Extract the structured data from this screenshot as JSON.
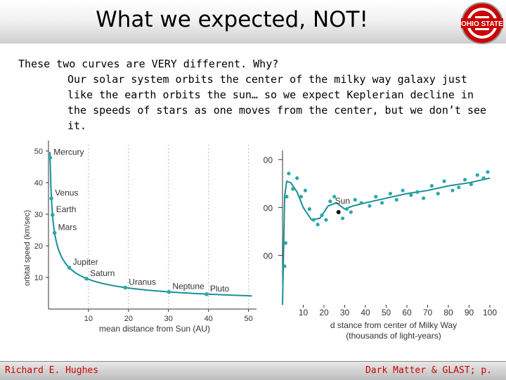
{
  "slide": {
    "title": "What we expected, NOT!",
    "intro": "These two curves are VERY different.  Why?",
    "paragraph": "Our solar system orbits the center of the milky way galaxy just like the earth orbits the sun… so we expect Keplerian decline in the speeds of stars as one moves from the center, but we don’t see it.",
    "footer_left": "Richard E. Hughes",
    "footer_right": "Dark Matter & GLAST; p.",
    "logo_text": "OHIO STATE"
  },
  "colors": {
    "accent": "#cc0000",
    "points": "#2aa8a8",
    "curve": "#1a8f95"
  },
  "chart_data": [
    {
      "type": "scatter",
      "title": "",
      "xlabel": "mean distance from Sun (AU)",
      "ylabel": "orbital speed (km/sec)",
      "xlim": [
        0,
        52
      ],
      "ylim": [
        0,
        52
      ],
      "x_ticks": [
        "10",
        "20",
        "30",
        "40",
        "50"
      ],
      "y_ticks": [
        "10",
        "20",
        "30",
        "40",
        "50"
      ],
      "points": [
        {
          "name": "Mercury",
          "x": 0.39,
          "y": 47.9
        },
        {
          "name": "Venus",
          "x": 0.72,
          "y": 35.0
        },
        {
          "name": "Earth",
          "x": 1.0,
          "y": 29.8
        },
        {
          "name": "Mars",
          "x": 1.52,
          "y": 24.1
        },
        {
          "name": "Jupiter",
          "x": 5.2,
          "y": 13.1
        },
        {
          "name": "Saturn",
          "x": 9.5,
          "y": 9.6
        },
        {
          "name": "Uranus",
          "x": 19.2,
          "y": 6.8
        },
        {
          "name": "Neptune",
          "x": 30.1,
          "y": 5.4
        },
        {
          "name": "Pluto",
          "x": 39.5,
          "y": 4.7
        }
      ]
    },
    {
      "type": "scatter",
      "title": "",
      "xlabel": "d stance from center of Milky Way",
      "xlabel2": "(thousands of light-years)",
      "ylabel": "",
      "xlim": [
        0,
        100
      ],
      "y_ticks": [
        "00",
        "00",
        "00"
      ],
      "x_ticks": [
        "10",
        "20",
        "30",
        "40",
        "50",
        "60",
        "70",
        "80",
        "90",
        "100"
      ],
      "annotation": "Sun",
      "sun_point": {
        "x": 27,
        "y": 0.6
      },
      "points": [
        {
          "x": 1,
          "y": 0.25
        },
        {
          "x": 1.5,
          "y": 0.4
        },
        {
          "x": 2,
          "y": 0.7
        },
        {
          "x": 3,
          "y": 0.85
        },
        {
          "x": 5,
          "y": 0.75
        },
        {
          "x": 7,
          "y": 0.82
        },
        {
          "x": 9,
          "y": 0.7
        },
        {
          "x": 11,
          "y": 0.74
        },
        {
          "x": 13,
          "y": 0.62
        },
        {
          "x": 15,
          "y": 0.55
        },
        {
          "x": 17,
          "y": 0.52
        },
        {
          "x": 19,
          "y": 0.58
        },
        {
          "x": 21,
          "y": 0.55
        },
        {
          "x": 23,
          "y": 0.67
        },
        {
          "x": 25,
          "y": 0.7
        },
        {
          "x": 29,
          "y": 0.56
        },
        {
          "x": 31,
          "y": 0.62
        },
        {
          "x": 33,
          "y": 0.6
        },
        {
          "x": 35,
          "y": 0.68
        },
        {
          "x": 38,
          "y": 0.66
        },
        {
          "x": 42,
          "y": 0.64
        },
        {
          "x": 45,
          "y": 0.7
        },
        {
          "x": 48,
          "y": 0.66
        },
        {
          "x": 52,
          "y": 0.72
        },
        {
          "x": 55,
          "y": 0.68
        },
        {
          "x": 58,
          "y": 0.74
        },
        {
          "x": 62,
          "y": 0.71
        },
        {
          "x": 65,
          "y": 0.73
        },
        {
          "x": 68,
          "y": 0.69
        },
        {
          "x": 72,
          "y": 0.77
        },
        {
          "x": 75,
          "y": 0.72
        },
        {
          "x": 78,
          "y": 0.8
        },
        {
          "x": 82,
          "y": 0.74
        },
        {
          "x": 85,
          "y": 0.76
        },
        {
          "x": 88,
          "y": 0.81
        },
        {
          "x": 91,
          "y": 0.78
        },
        {
          "x": 94,
          "y": 0.84
        },
        {
          "x": 97,
          "y": 0.82
        },
        {
          "x": 99,
          "y": 0.86
        }
      ],
      "curve": [
        {
          "x": 0,
          "y": 0.0
        },
        {
          "x": 0.5,
          "y": 0.35
        },
        {
          "x": 1,
          "y": 0.7
        },
        {
          "x": 2,
          "y": 0.8
        },
        {
          "x": 4,
          "y": 0.79
        },
        {
          "x": 7,
          "y": 0.73
        },
        {
          "x": 10,
          "y": 0.63
        },
        {
          "x": 14,
          "y": 0.55
        },
        {
          "x": 18,
          "y": 0.56
        },
        {
          "x": 22,
          "y": 0.64
        },
        {
          "x": 26,
          "y": 0.66
        },
        {
          "x": 30,
          "y": 0.62
        },
        {
          "x": 34,
          "y": 0.64
        },
        {
          "x": 40,
          "y": 0.66
        },
        {
          "x": 50,
          "y": 0.69
        },
        {
          "x": 60,
          "y": 0.72
        },
        {
          "x": 70,
          "y": 0.74
        },
        {
          "x": 80,
          "y": 0.77
        },
        {
          "x": 90,
          "y": 0.79
        },
        {
          "x": 100,
          "y": 0.82
        }
      ]
    }
  ]
}
